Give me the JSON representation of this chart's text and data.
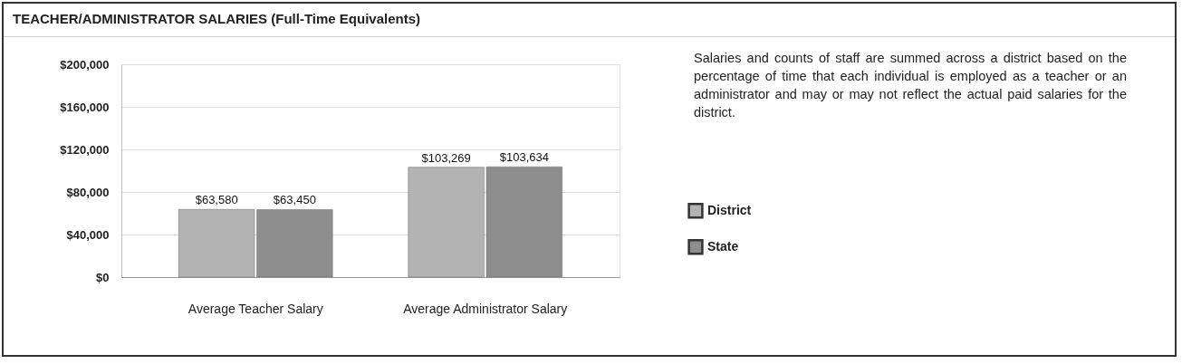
{
  "chart_data": {
    "type": "bar",
    "title": "TEACHER/ADMINISTRATOR SALARIES (Full-Time Equivalents)",
    "categories": [
      "Average Teacher Salary",
      "Average Administrator Salary"
    ],
    "series": [
      {
        "name": "District",
        "color": "#b3b3b3",
        "values": [
          63580,
          103269
        ],
        "value_labels": [
          "$63,580",
          "$103,269"
        ]
      },
      {
        "name": "State",
        "color": "#8d8d8d",
        "values": [
          63450,
          103634
        ],
        "value_labels": [
          "$63,450",
          "$103,634"
        ]
      }
    ],
    "ylim": [
      0,
      200000
    ],
    "yticks": [
      {
        "value": 0,
        "label": "$0"
      },
      {
        "value": 40000,
        "label": "$40,000"
      },
      {
        "value": 80000,
        "label": "$80,000"
      },
      {
        "value": 120000,
        "label": "$120,000"
      },
      {
        "value": 160000,
        "label": "$160,000"
      },
      {
        "value": 200000,
        "label": "$200,000"
      }
    ],
    "grid": "y",
    "legend": "right",
    "annotations": [
      "Salaries and counts of staff are summed across a district based on the percentage of time that each individual is employed as a teacher or an administrator and may or may not reflect the actual paid salaries for the district."
    ]
  }
}
